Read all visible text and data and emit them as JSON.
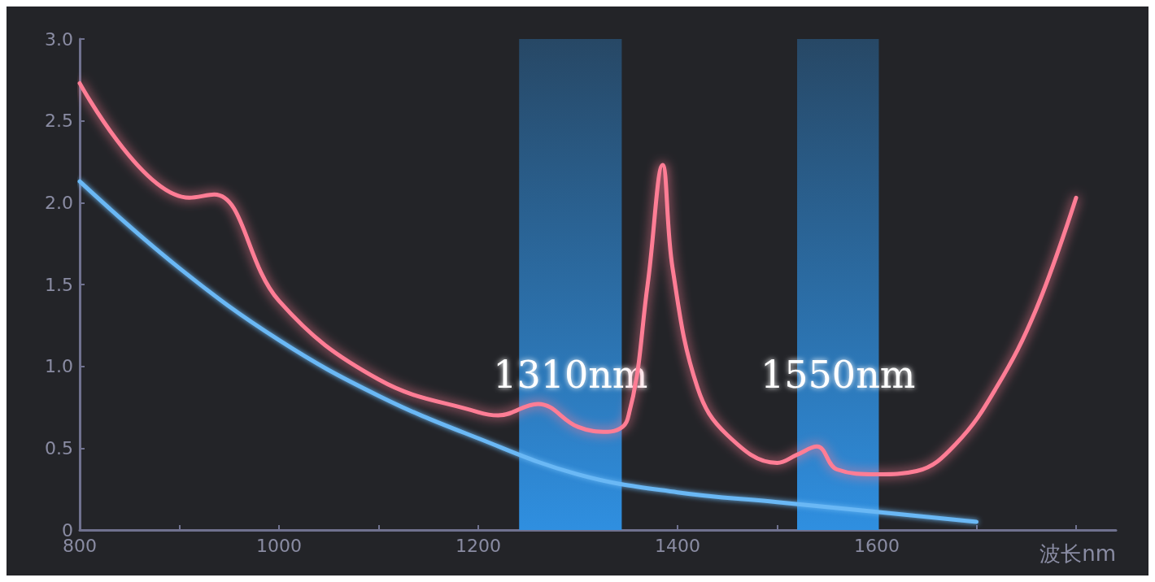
{
  "chart_data": {
    "type": "line",
    "xlabel": "波长nm",
    "xlim": [
      800,
      1840
    ],
    "ylim": [
      0,
      3.0
    ],
    "xticks": [
      800,
      {
        "value": 900,
        "label": null
      },
      1000,
      {
        "value": 1100,
        "label": null
      },
      1200,
      {
        "value": 1300,
        "label": null
      },
      1400,
      {
        "value": 1500,
        "label": null
      },
      1600,
      {
        "value": 1700,
        "label": null
      },
      {
        "value": 1800,
        "label": null
      }
    ],
    "yticks": [
      0,
      0.5,
      {
        "value": 1,
        "label": "1.0"
      },
      1.5,
      {
        "value": 2,
        "label": "2.0"
      },
      2.5,
      {
        "value": 3,
        "label": "3.0"
      }
    ],
    "x": [
      800,
      910,
      935,
      1000,
      1100,
      1200,
      1220,
      1260,
      1300,
      1330,
      1350,
      1370,
      1385,
      1395,
      1420,
      1450,
      1500,
      1520,
      1540,
      1560,
      1600,
      1640,
      1680,
      1720,
      1760,
      1800
    ],
    "series": [
      {
        "color": "#ff7d95",
        "values": [
          2.73,
          2.03,
          2.05,
          1.4,
          0.92,
          0.72,
          0.7,
          0.77,
          0.63,
          0.6,
          0.68,
          1.5,
          2.23,
          1.6,
          0.87,
          0.58,
          0.41,
          0.46,
          0.51,
          0.37,
          0.34,
          0.36,
          0.53,
          0.87,
          1.35,
          2.03
        ]
      },
      {
        "color": "#6ab8f5",
        "x": [
          800,
          900,
          1000,
          1100,
          1200,
          1300,
          1400,
          1500,
          1600,
          1700
        ],
        "values": [
          2.13,
          1.6,
          1.16,
          0.82,
          0.56,
          0.34,
          0.23,
          0.17,
          0.11,
          0.05
        ]
      }
    ],
    "bands": [
      {
        "axis": "x",
        "from": 1241,
        "to": 1344,
        "label": "1310nm",
        "color": "#2f8fe0"
      },
      {
        "axis": "x",
        "from": 1520,
        "to": 1602,
        "label": "1550nm",
        "color": "#2f8fe0"
      }
    ],
    "grid": false,
    "marker": "none",
    "line_style": "solid"
  }
}
